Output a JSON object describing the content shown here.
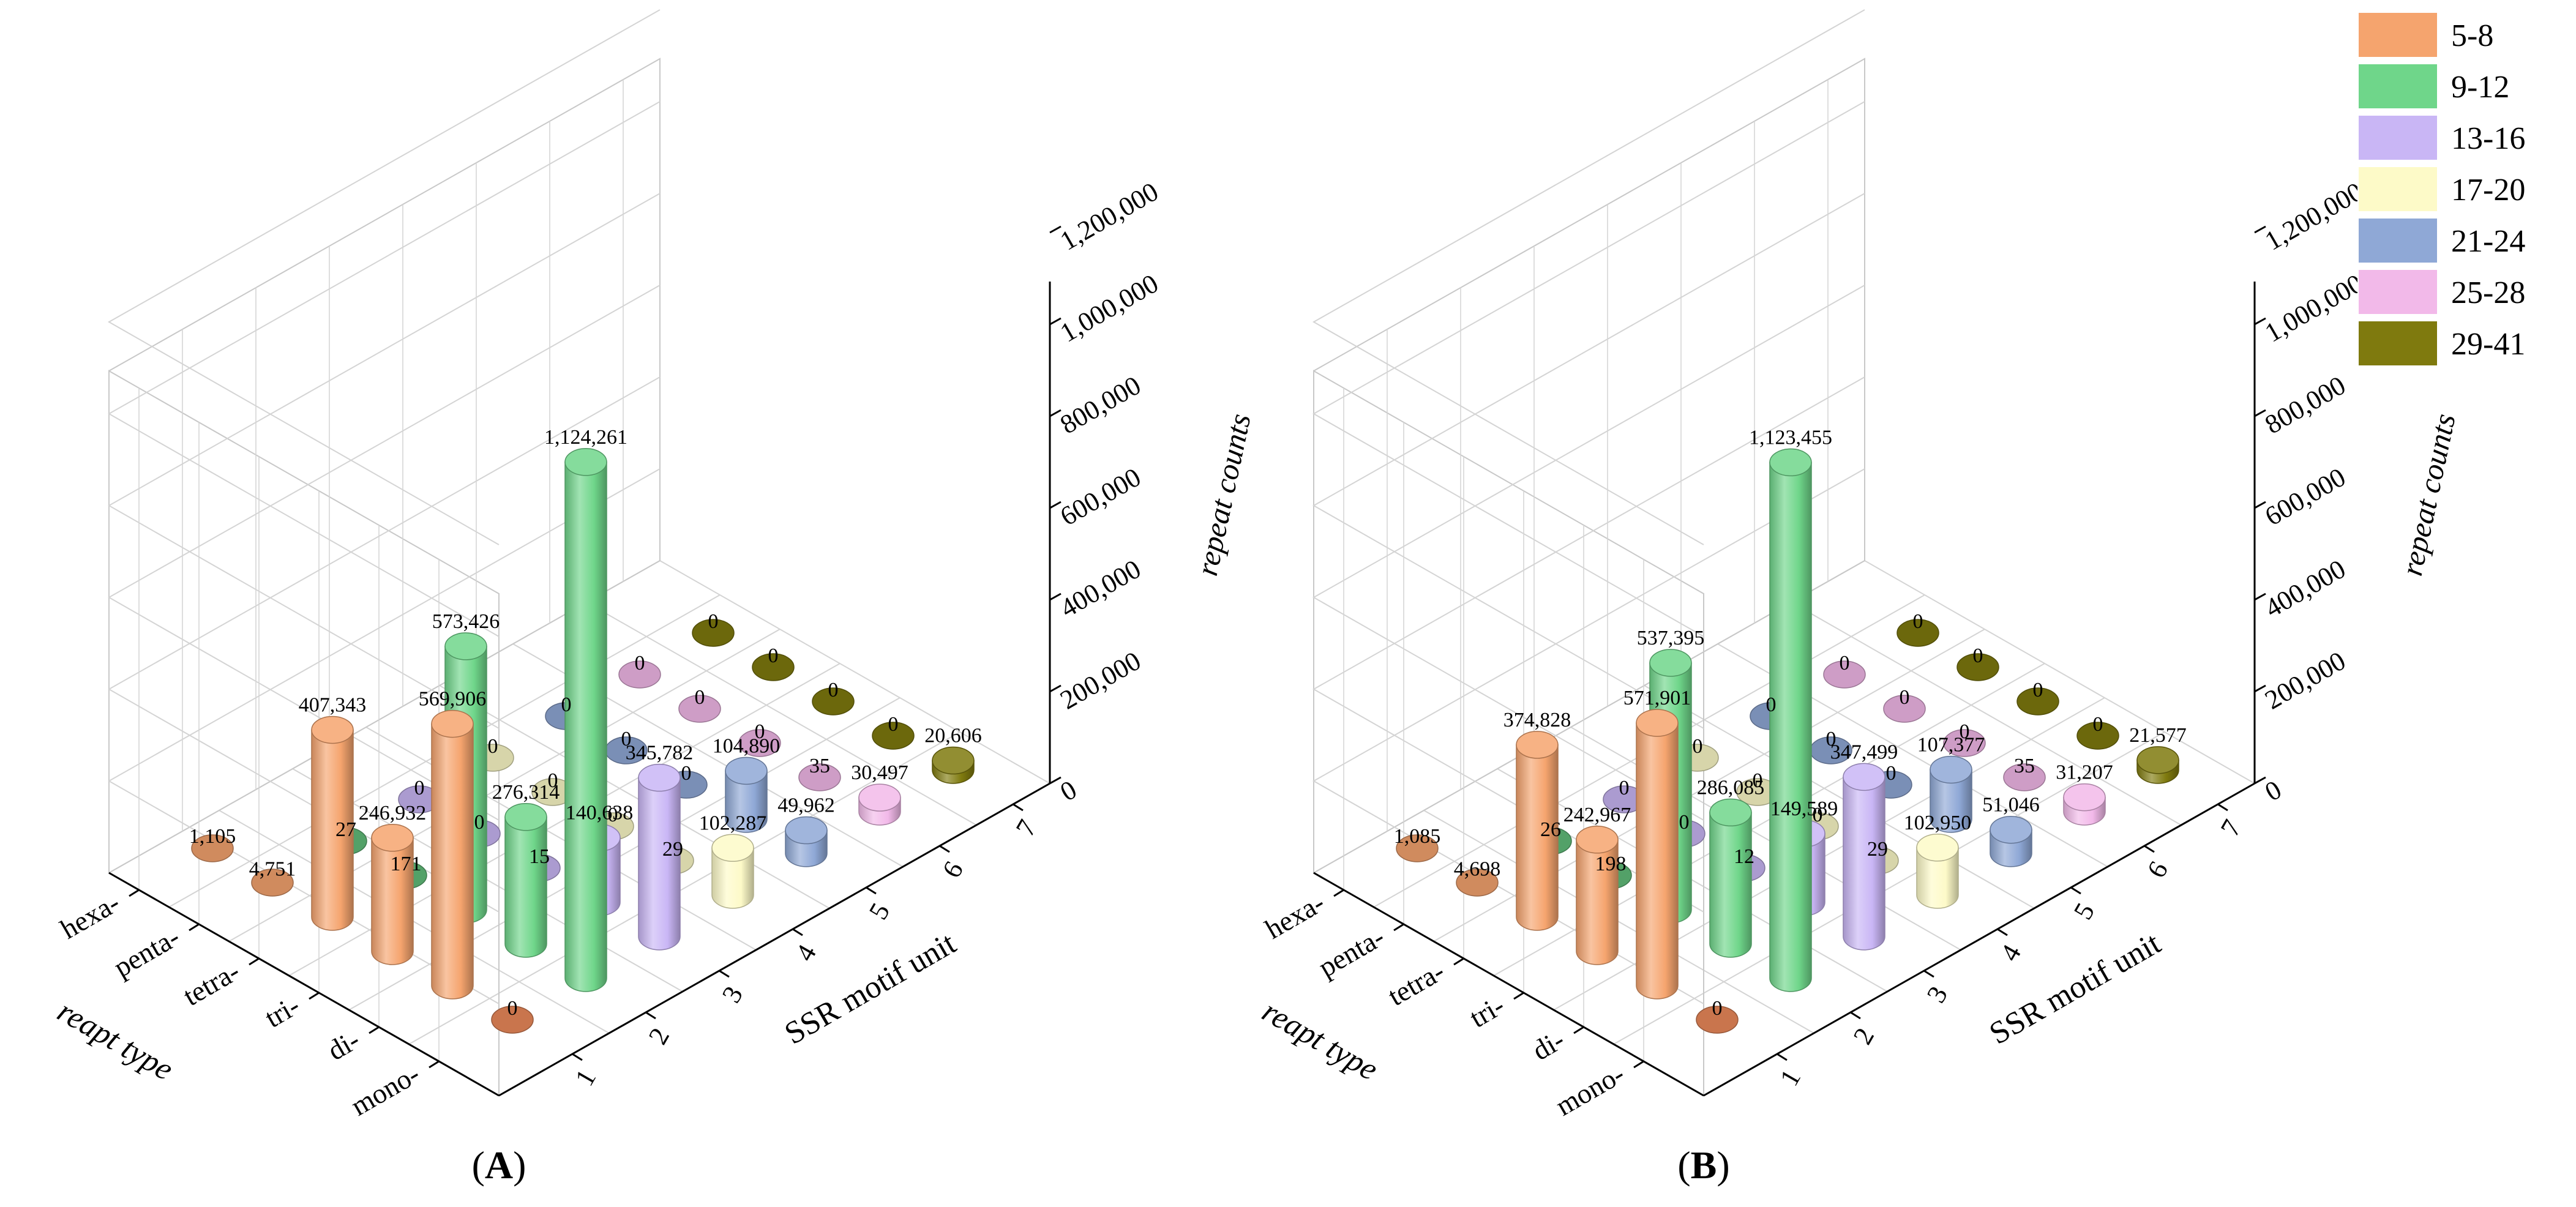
{
  "colors": {
    "5-8": "#f5a46e",
    "9-12": "#6fd68a",
    "13-16": "#c9b6f5",
    "17-20": "#fdfac8",
    "21-24": "#8fa8d6",
    "25-28": "#f2b9e9",
    "29-41": "#7f7a0e",
    "floor_mono_0": "#c9754d",
    "grid": "#d4d4d4"
  },
  "legend": {
    "items": [
      "5-8",
      "9-12",
      "13-16",
      "17-20",
      "21-24",
      "25-28",
      "29-41"
    ]
  },
  "chart_data": [
    {
      "type": "bar3d",
      "panel_label": "A",
      "rows": [
        "mono-",
        "di-",
        "tri-",
        "tetra-",
        "penta-",
        "hexa-"
      ],
      "columns": [
        "1",
        "2",
        "3",
        "4",
        "5",
        "6",
        "7"
      ],
      "column_groups": [
        "5-8",
        "9-12",
        "13-16",
        "17-20",
        "21-24",
        "25-28",
        "29-41"
      ],
      "xlabel": "reapt type",
      "ylabel": "SSR motif unit",
      "zlabel": "repeat counts",
      "zlim": [
        0,
        1300000
      ],
      "z_ticks": [
        0,
        200000,
        400000,
        600000,
        800000,
        1000000,
        1200000
      ],
      "z_tick_labels": [
        "0",
        "200,000",
        "400,000",
        "600,000",
        "800,000",
        "1,000,000",
        "1,200,000"
      ],
      "values": [
        [
          0,
          1124261,
          345782,
          102287,
          49962,
          30497,
          20606
        ],
        [
          569906,
          276314,
          140638,
          29,
          104890,
          35,
          0
        ],
        [
          246932,
          573426,
          15,
          0,
          0,
          0,
          0
        ],
        [
          407343,
          171,
          0,
          0,
          0,
          0,
          0
        ],
        [
          4751,
          27,
          0,
          0,
          0,
          0,
          0
        ],
        [
          1105,
          0,
          0,
          0,
          0,
          0,
          0
        ]
      ],
      "value_labels": [
        [
          "0",
          "1,124,261",
          "345,782",
          "102,287",
          "49,962",
          "30,497",
          "20,606"
        ],
        [
          "569,906",
          "276,314",
          "140,638",
          "29",
          "104,890",
          "35",
          "0"
        ],
        [
          "246,932",
          "573,426",
          "15",
          "0",
          "0",
          "0",
          "0"
        ],
        [
          "407,343",
          "171",
          "0",
          "0",
          "0",
          "0",
          "0"
        ],
        [
          "4,751",
          "27",
          "0",
          "0",
          "0",
          "0",
          "0"
        ],
        [
          "1,105",
          "",
          "",
          "",
          "",
          "",
          ""
        ]
      ]
    },
    {
      "type": "bar3d",
      "panel_label": "B",
      "rows": [
        "mono-",
        "di-",
        "tri-",
        "tetra-",
        "penta-",
        "hexa-"
      ],
      "columns": [
        "1",
        "2",
        "3",
        "4",
        "5",
        "6",
        "7"
      ],
      "column_groups": [
        "5-8",
        "9-12",
        "13-16",
        "17-20",
        "21-24",
        "25-28",
        "29-41"
      ],
      "xlabel": "reapt type",
      "ylabel": "SSR motif unit",
      "zlabel": "repeat counts",
      "zlim": [
        0,
        1300000
      ],
      "z_ticks": [
        0,
        200000,
        400000,
        600000,
        800000,
        1000000,
        1200000
      ],
      "z_tick_labels": [
        "0",
        "200,000",
        "400,000",
        "600,000",
        "800,000",
        "1,000,000",
        "1,200,000"
      ],
      "values": [
        [
          0,
          1123455,
          347499,
          102950,
          51046,
          31207,
          21577
        ],
        [
          571901,
          286085,
          149589,
          29,
          107377,
          35,
          0
        ],
        [
          242967,
          537395,
          12,
          0,
          0,
          0,
          0
        ],
        [
          374828,
          198,
          0,
          0,
          0,
          0,
          0
        ],
        [
          4698,
          26,
          0,
          0,
          0,
          0,
          0
        ],
        [
          1085,
          0,
          0,
          0,
          0,
          0,
          0
        ]
      ],
      "value_labels": [
        [
          "0",
          "1,123,455",
          "347,499",
          "102,950",
          "51,046",
          "31,207",
          "21,577"
        ],
        [
          "571,901",
          "286,085",
          "149,589",
          "29",
          "107,377",
          "35",
          "0"
        ],
        [
          "242,967",
          "537,395",
          "12",
          "0",
          "0",
          "0",
          "0"
        ],
        [
          "374,828",
          "198",
          "0",
          "0",
          "0",
          "0",
          "0"
        ],
        [
          "4,698",
          "26",
          "0",
          "0",
          "0",
          "0",
          "0"
        ],
        [
          "1,085",
          "",
          "",
          "",
          "",
          "",
          ""
        ]
      ]
    }
  ]
}
